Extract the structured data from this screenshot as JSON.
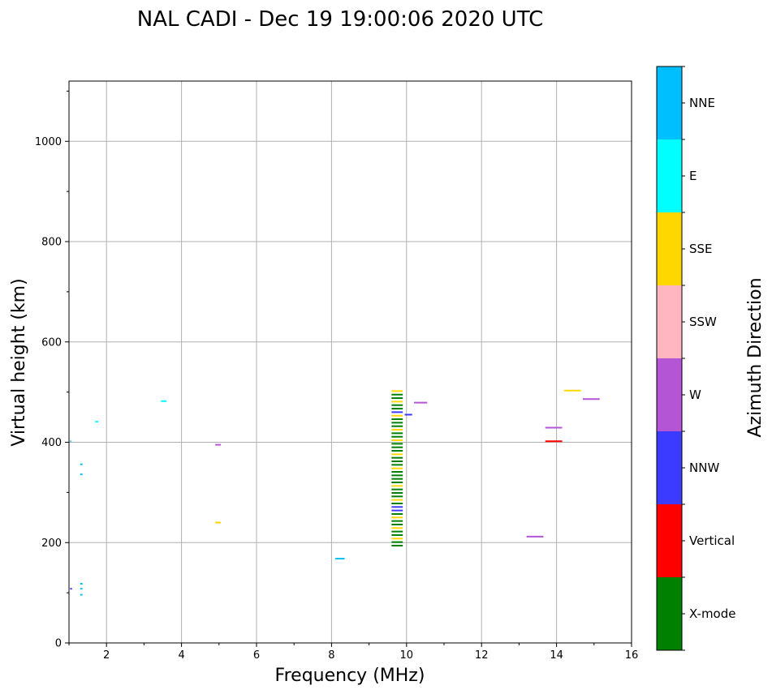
{
  "chart_data": {
    "type": "scatter",
    "title": "NAL CADI - Dec 19 19:00:06 2020 UTC",
    "xlabel": "Frequency (MHz)",
    "ylabel": "Virtual height (km)",
    "xlim": [
      1,
      16
    ],
    "ylim": [
      0,
      1120
    ],
    "xticks": [
      2,
      4,
      6,
      8,
      10,
      12,
      14,
      16
    ],
    "yticks": [
      0,
      200,
      400,
      600,
      800,
      1000
    ],
    "grid": true,
    "colorbar": {
      "label": "Azimuth Direction",
      "categories": [
        {
          "name": "X-mode",
          "color": "#008000"
        },
        {
          "name": "Vertical",
          "color": "#ff0000"
        },
        {
          "name": "NNW",
          "color": "#3b3bff"
        },
        {
          "name": "W",
          "color": "#b455d6"
        },
        {
          "name": "SSW",
          "color": "#ffb6c1"
        },
        {
          "name": "SSE",
          "color": "#ffd700"
        },
        {
          "name": "E",
          "color": "#00ffff"
        },
        {
          "name": "NNE",
          "color": "#00bfff"
        }
      ]
    },
    "segments": [
      {
        "x1": 9.6,
        "x2": 9.9,
        "y": 502,
        "dir": "SSE"
      },
      {
        "x1": 9.6,
        "x2": 9.9,
        "y": 495,
        "dir": "X-mode"
      },
      {
        "x1": 9.6,
        "x2": 9.9,
        "y": 488,
        "dir": "X-mode"
      },
      {
        "x1": 9.6,
        "x2": 9.9,
        "y": 481,
        "dir": "SSE"
      },
      {
        "x1": 9.6,
        "x2": 9.9,
        "y": 474,
        "dir": "X-mode"
      },
      {
        "x1": 9.6,
        "x2": 9.9,
        "y": 467,
        "dir": "X-mode"
      },
      {
        "x1": 9.6,
        "x2": 9.9,
        "y": 460,
        "dir": "NNW"
      },
      {
        "x1": 9.6,
        "x2": 9.9,
        "y": 453,
        "dir": "SSE"
      },
      {
        "x1": 9.6,
        "x2": 9.9,
        "y": 446,
        "dir": "X-mode"
      },
      {
        "x1": 9.6,
        "x2": 9.9,
        "y": 439,
        "dir": "X-mode"
      },
      {
        "x1": 9.6,
        "x2": 9.9,
        "y": 432,
        "dir": "X-mode"
      },
      {
        "x1": 9.6,
        "x2": 9.9,
        "y": 425,
        "dir": "SSE"
      },
      {
        "x1": 9.6,
        "x2": 9.9,
        "y": 418,
        "dir": "X-mode"
      },
      {
        "x1": 9.6,
        "x2": 9.9,
        "y": 411,
        "dir": "X-mode"
      },
      {
        "x1": 9.6,
        "x2": 9.9,
        "y": 404,
        "dir": "SSE"
      },
      {
        "x1": 9.6,
        "x2": 9.9,
        "y": 397,
        "dir": "X-mode"
      },
      {
        "x1": 9.6,
        "x2": 9.9,
        "y": 390,
        "dir": "X-mode"
      },
      {
        "x1": 9.6,
        "x2": 9.9,
        "y": 383,
        "dir": "X-mode"
      },
      {
        "x1": 9.6,
        "x2": 9.9,
        "y": 376,
        "dir": "SSE"
      },
      {
        "x1": 9.6,
        "x2": 9.9,
        "y": 369,
        "dir": "X-mode"
      },
      {
        "x1": 9.6,
        "x2": 9.9,
        "y": 362,
        "dir": "X-mode"
      },
      {
        "x1": 9.6,
        "x2": 9.9,
        "y": 355,
        "dir": "X-mode"
      },
      {
        "x1": 9.6,
        "x2": 9.9,
        "y": 348,
        "dir": "SSE"
      },
      {
        "x1": 9.6,
        "x2": 9.9,
        "y": 341,
        "dir": "X-mode"
      },
      {
        "x1": 9.6,
        "x2": 9.9,
        "y": 334,
        "dir": "X-mode"
      },
      {
        "x1": 9.6,
        "x2": 9.9,
        "y": 327,
        "dir": "X-mode"
      },
      {
        "x1": 9.6,
        "x2": 9.9,
        "y": 320,
        "dir": "X-mode"
      },
      {
        "x1": 9.6,
        "x2": 9.9,
        "y": 313,
        "dir": "SSE"
      },
      {
        "x1": 9.6,
        "x2": 9.9,
        "y": 306,
        "dir": "X-mode"
      },
      {
        "x1": 9.6,
        "x2": 9.9,
        "y": 299,
        "dir": "X-mode"
      },
      {
        "x1": 9.6,
        "x2": 9.9,
        "y": 292,
        "dir": "X-mode"
      },
      {
        "x1": 9.6,
        "x2": 9.9,
        "y": 285,
        "dir": "SSE"
      },
      {
        "x1": 9.6,
        "x2": 9.9,
        "y": 278,
        "dir": "X-mode"
      },
      {
        "x1": 9.6,
        "x2": 9.9,
        "y": 271,
        "dir": "NNW"
      },
      {
        "x1": 9.6,
        "x2": 9.9,
        "y": 264,
        "dir": "NNW"
      },
      {
        "x1": 9.6,
        "x2": 9.9,
        "y": 257,
        "dir": "X-mode"
      },
      {
        "x1": 9.6,
        "x2": 9.9,
        "y": 250,
        "dir": "SSE"
      },
      {
        "x1": 9.6,
        "x2": 9.9,
        "y": 243,
        "dir": "X-mode"
      },
      {
        "x1": 9.6,
        "x2": 9.9,
        "y": 236,
        "dir": "X-mode"
      },
      {
        "x1": 9.6,
        "x2": 9.9,
        "y": 229,
        "dir": "SSE"
      },
      {
        "x1": 9.6,
        "x2": 9.9,
        "y": 222,
        "dir": "X-mode"
      },
      {
        "x1": 9.6,
        "x2": 9.9,
        "y": 215,
        "dir": "X-mode"
      },
      {
        "x1": 9.6,
        "x2": 9.9,
        "y": 208,
        "dir": "SSE"
      },
      {
        "x1": 9.6,
        "x2": 9.9,
        "y": 201,
        "dir": "X-mode"
      },
      {
        "x1": 9.6,
        "x2": 9.9,
        "y": 194,
        "dir": "X-mode"
      },
      {
        "x1": 9.95,
        "x2": 10.15,
        "y": 455,
        "dir": "NNW"
      },
      {
        "x1": 10.2,
        "x2": 10.55,
        "y": 479,
        "dir": "W"
      },
      {
        "x1": 14.2,
        "x2": 14.65,
        "y": 503,
        "dir": "SSE"
      },
      {
        "x1": 14.7,
        "x2": 15.15,
        "y": 486,
        "dir": "W"
      },
      {
        "x1": 13.7,
        "x2": 14.15,
        "y": 429,
        "dir": "W"
      },
      {
        "x1": 13.7,
        "x2": 14.15,
        "y": 402,
        "dir": "Vertical"
      },
      {
        "x1": 13.2,
        "x2": 13.65,
        "y": 212,
        "dir": "W"
      },
      {
        "x1": 8.1,
        "x2": 8.35,
        "y": 168,
        "dir": "NNE"
      },
      {
        "x1": 3.45,
        "x2": 3.6,
        "y": 482,
        "dir": "E"
      },
      {
        "x1": 4.9,
        "x2": 5.05,
        "y": 395,
        "dir": "W"
      },
      {
        "x1": 4.9,
        "x2": 5.05,
        "y": 240,
        "dir": "SSE"
      },
      {
        "x1": 1.7,
        "x2": 1.78,
        "y": 441,
        "dir": "E"
      },
      {
        "x1": 1.3,
        "x2": 1.36,
        "y": 356,
        "dir": "NNE"
      },
      {
        "x1": 1.3,
        "x2": 1.36,
        "y": 336,
        "dir": "NNE"
      },
      {
        "x1": 1.3,
        "x2": 1.36,
        "y": 118,
        "dir": "NNE"
      },
      {
        "x1": 1.3,
        "x2": 1.36,
        "y": 108,
        "dir": "NNE"
      },
      {
        "x1": 1.3,
        "x2": 1.36,
        "y": 96,
        "dir": "NNE"
      },
      {
        "x1": 1.03,
        "x2": 1.08,
        "y": 108,
        "dir": "NNW"
      },
      {
        "x1": 1.03,
        "x2": 1.06,
        "y": 402,
        "dir": "NNE"
      }
    ]
  }
}
